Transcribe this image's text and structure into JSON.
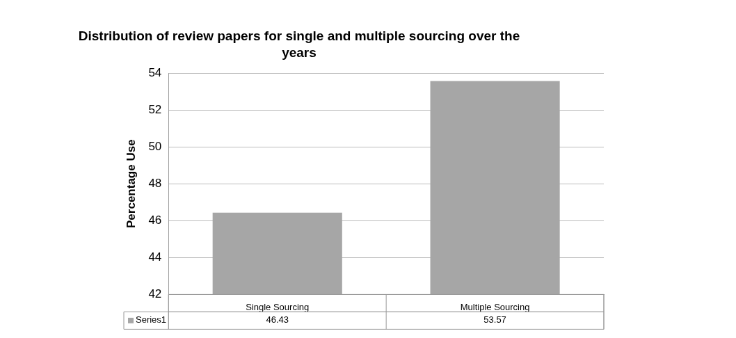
{
  "chart_data": {
    "type": "bar",
    "title": "Distribution of review papers for single and multiple sourcing over the years",
    "ylabel": "Percentage Use",
    "categories": [
      "Single Sourcing",
      "Multiple Sourcing"
    ],
    "series": [
      {
        "name": "Series1",
        "color": "#a6a6a6",
        "values": [
          46.43,
          53.57
        ]
      }
    ],
    "ylim": [
      42,
      54
    ],
    "yticks": [
      42,
      44,
      46,
      48,
      50,
      52,
      54
    ],
    "grid": "y",
    "legend": "bottom",
    "data_labels": true
  }
}
